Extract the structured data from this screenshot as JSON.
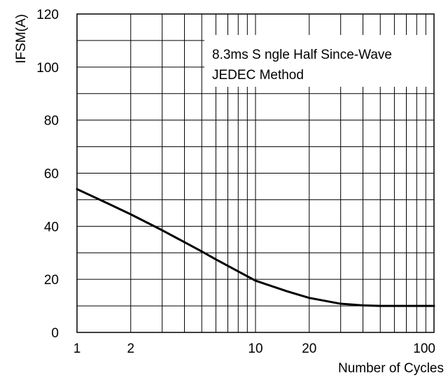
{
  "chart_data": {
    "type": "line",
    "xscale": "log",
    "xlim": [
      1,
      100
    ],
    "ylim": [
      0,
      120
    ],
    "ylabel": "IFSM(A)",
    "xlabel": "Number of Cycles",
    "grid": true,
    "x_ticks": [
      1,
      2,
      10,
      20,
      100
    ],
    "x_tick_labels": [
      "1",
      "2",
      "10",
      "20",
      "100"
    ],
    "y_ticks": [
      0,
      20,
      40,
      60,
      80,
      100,
      120
    ],
    "y_tick_labels": [
      "0",
      "20",
      "40",
      "60",
      "80",
      "100",
      "120"
    ],
    "annotation": [
      "8.3ms S ngle Half Since-Wave",
      "JEDEC Method"
    ],
    "series": [
      {
        "x": [
          1,
          1.5,
          2,
          3,
          4,
          5,
          6,
          8,
          10,
          15,
          20,
          30,
          40,
          50,
          60,
          80,
          100
        ],
        "y": [
          54,
          48.5,
          44.5,
          38.5,
          34,
          30.5,
          27.5,
          23,
          19.5,
          15.5,
          13,
          10.8,
          10.2,
          10,
          10,
          10,
          10
        ]
      }
    ]
  }
}
